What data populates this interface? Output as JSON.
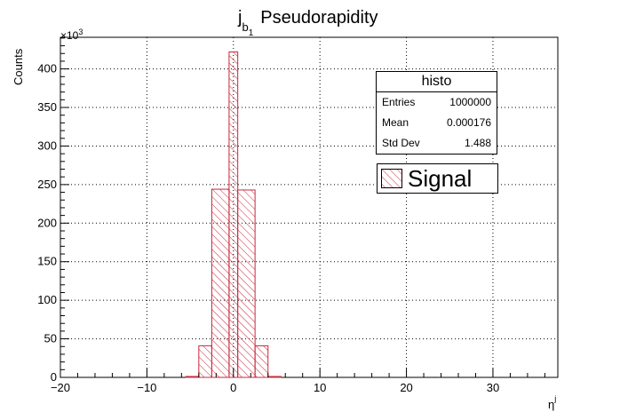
{
  "chart_data": {
    "type": "bar",
    "title_main": "j",
    "title_sub1": "b",
    "title_sub2": "1",
    "title_rest": "Pseudorapidity",
    "ylabel": "Counts",
    "xlabel_main": "η",
    "xlabel_sup": "j",
    "y_multiplier_prefix": "×10",
    "y_multiplier_exp": "3",
    "xlim": [
      -20,
      37.5
    ],
    "ylim": [
      0,
      441
    ],
    "x_ticks": [
      "−20",
      "−10",
      "0",
      "10",
      "20",
      "30"
    ],
    "x_tick_values": [
      -20,
      -10,
      0,
      10,
      20,
      30
    ],
    "y_ticks": [
      "0",
      "50",
      "100",
      "150",
      "200",
      "250",
      "300",
      "350",
      "400"
    ],
    "y_tick_values": [
      0,
      50,
      100,
      150,
      200,
      250,
      300,
      350,
      400
    ],
    "grid": true,
    "bin_edges": [
      -5.5,
      -4,
      -2.5,
      -0.5,
      0.5,
      2.5,
      4,
      5.5
    ],
    "values": [
      1.2,
      41,
      244,
      422,
      243,
      41,
      1.2
    ],
    "series": [
      {
        "name": "Signal",
        "fill": "hatched",
        "color": "#c8283c"
      }
    ],
    "legend_position": "top-right"
  },
  "stats": {
    "title": "histo",
    "rows": [
      {
        "label": "Entries",
        "value": "1000000"
      },
      {
        "label": "Mean",
        "value": "0.000176"
      },
      {
        "label": "Std Dev",
        "value": "1.488"
      }
    ]
  },
  "legend": {
    "label": "Signal"
  }
}
